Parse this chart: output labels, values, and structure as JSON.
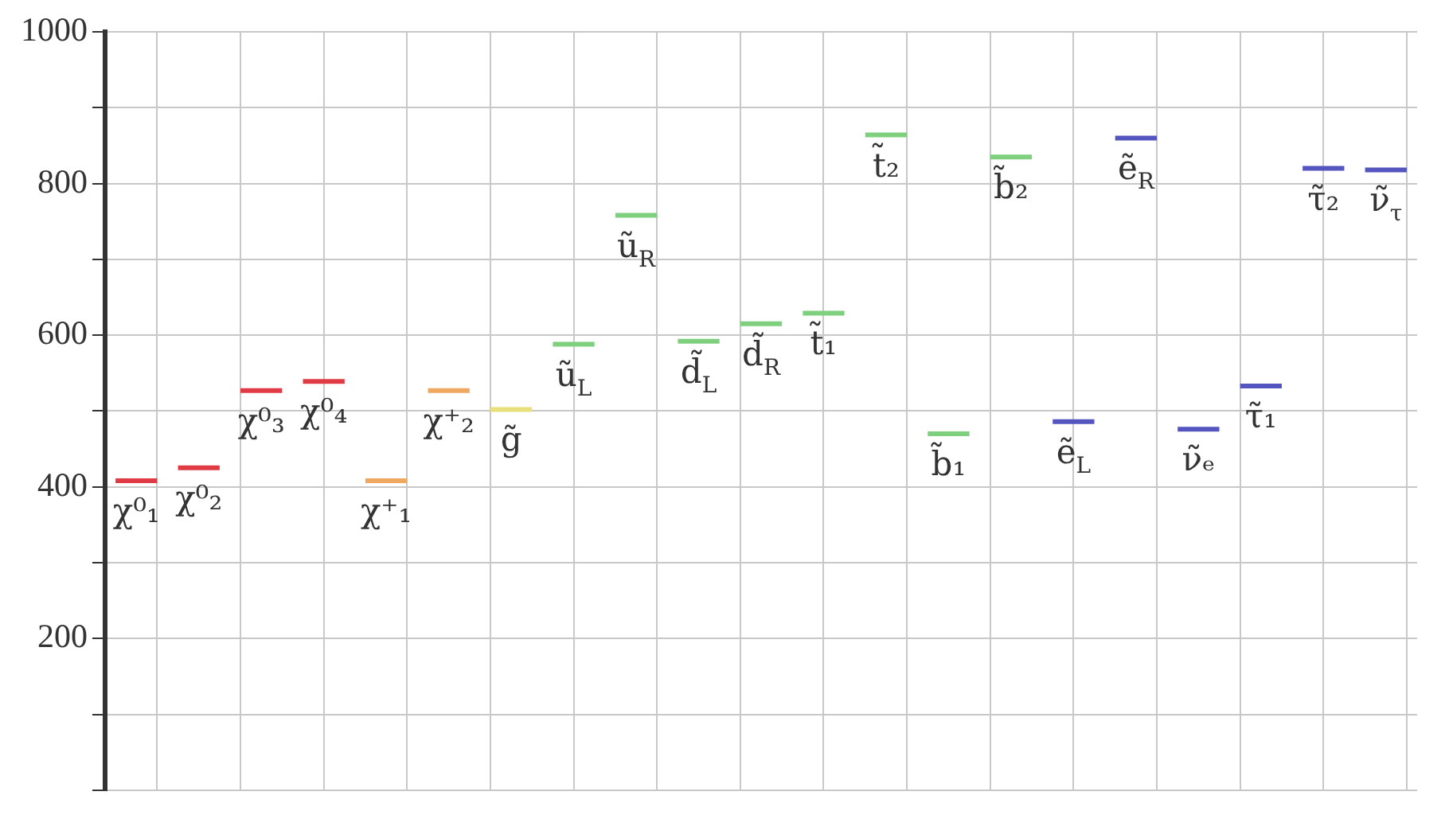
{
  "chart_data": {
    "type": "line",
    "categories": [
      null,
      null,
      null,
      null,
      null,
      null,
      null,
      null,
      null,
      null,
      null,
      null,
      null,
      null,
      null,
      null,
      null,
      null,
      null,
      null,
      null,
      null,
      null,
      null,
      null,
      null,
      null,
      null,
      null,
      null,
      null,
      null,
      null,
      null,
      null,
      null,
      null,
      null,
      null,
      null,
      null,
      null,
      null,
      null,
      null,
      null,
      null,
      null,
      null,
      null,
      null,
      null,
      null,
      null,
      null,
      null,
      null,
      null,
      null,
      null,
      null,
      null,
      null
    ],
    "series": [
      {
        "name": "χ⁰₁",
        "color": "#e03a44",
        "values": [
          408,
          408,
          408,
          null,
          null,
          null,
          null,
          null,
          null,
          null,
          null,
          null,
          null,
          null,
          null,
          null,
          null,
          null,
          null,
          null,
          null,
          null,
          null,
          null,
          null,
          null,
          null,
          null,
          null,
          null,
          null,
          null,
          null,
          null,
          null,
          null,
          null,
          null,
          null,
          null,
          null,
          null,
          null,
          null,
          null,
          null,
          null,
          null,
          null,
          null,
          null,
          null,
          null,
          null,
          null,
          null,
          null,
          null,
          null,
          null,
          null,
          null,
          null
        ]
      },
      {
        "name": "χ⁰₂",
        "color": "#e03a44",
        "values": [
          null,
          null,
          null,
          425,
          425,
          425,
          null,
          null,
          null,
          null,
          null,
          null,
          null,
          null,
          null,
          null,
          null,
          null,
          null,
          null,
          null,
          null,
          null,
          null,
          null,
          null,
          null,
          null,
          null,
          null,
          null,
          null,
          null,
          null,
          null,
          null,
          null,
          null,
          null,
          null,
          null,
          null,
          null,
          null,
          null,
          null,
          null,
          null,
          null,
          null,
          null,
          null,
          null,
          null,
          null,
          null,
          null,
          null,
          null,
          null,
          null,
          null,
          null
        ]
      },
      {
        "name": "χ⁰₃",
        "color": "#e03a44",
        "values": [
          null,
          null,
          null,
          null,
          null,
          null,
          527,
          527,
          527,
          null,
          null,
          null,
          null,
          null,
          null,
          null,
          null,
          null,
          null,
          null,
          null,
          null,
          null,
          null,
          null,
          null,
          null,
          null,
          null,
          null,
          null,
          null,
          null,
          null,
          null,
          null,
          null,
          null,
          null,
          null,
          null,
          null,
          null,
          null,
          null,
          null,
          null,
          null,
          null,
          null,
          null,
          null,
          null,
          null,
          null,
          null,
          null,
          null,
          null,
          null,
          null,
          null,
          null
        ]
      },
      {
        "name": "χ⁰₄",
        "color": "#e03a44",
        "values": [
          null,
          null,
          null,
          null,
          null,
          null,
          null,
          null,
          null,
          539,
          539,
          539,
          null,
          null,
          null,
          null,
          null,
          null,
          null,
          null,
          null,
          null,
          null,
          null,
          null,
          null,
          null,
          null,
          null,
          null,
          null,
          null,
          null,
          null,
          null,
          null,
          null,
          null,
          null,
          null,
          null,
          null,
          null,
          null,
          null,
          null,
          null,
          null,
          null,
          null,
          null,
          null,
          null,
          null,
          null,
          null,
          null,
          null,
          null,
          null,
          null,
          null,
          null
        ]
      },
      {
        "name": "χ⁺₁",
        "color": "#f0a860",
        "values": [
          null,
          null,
          null,
          null,
          null,
          null,
          null,
          null,
          null,
          null,
          null,
          null,
          408,
          408,
          408,
          null,
          null,
          null,
          null,
          null,
          null,
          null,
          null,
          null,
          null,
          null,
          null,
          null,
          null,
          null,
          null,
          null,
          null,
          null,
          null,
          null,
          null,
          null,
          null,
          null,
          null,
          null,
          null,
          null,
          null,
          null,
          null,
          null,
          null,
          null,
          null,
          null,
          null,
          null,
          null,
          null,
          null,
          null,
          null,
          null,
          null,
          null,
          null
        ]
      },
      {
        "name": "χ⁺₂",
        "color": "#f0a860",
        "values": [
          null,
          null,
          null,
          null,
          null,
          null,
          null,
          null,
          null,
          null,
          null,
          null,
          null,
          null,
          null,
          527,
          527,
          527,
          null,
          null,
          null,
          null,
          null,
          null,
          null,
          null,
          null,
          null,
          null,
          null,
          null,
          null,
          null,
          null,
          null,
          null,
          null,
          null,
          null,
          null,
          null,
          null,
          null,
          null,
          null,
          null,
          null,
          null,
          null,
          null,
          null,
          null,
          null,
          null,
          null,
          null,
          null,
          null,
          null,
          null,
          null,
          null,
          null
        ]
      },
      {
        "name": "g̃",
        "color": "#e8e07a",
        "values": [
          null,
          null,
          null,
          null,
          null,
          null,
          null,
          null,
          null,
          null,
          null,
          null,
          null,
          null,
          null,
          null,
          null,
          null,
          502,
          502,
          502,
          null,
          null,
          null,
          null,
          null,
          null,
          null,
          null,
          null,
          null,
          null,
          null,
          null,
          null,
          null,
          null,
          null,
          null,
          null,
          null,
          null,
          null,
          null,
          null,
          null,
          null,
          null,
          null,
          null,
          null,
          null,
          null,
          null,
          null,
          null,
          null,
          null,
          null,
          null,
          null,
          null,
          null
        ]
      },
      {
        "name": "ũ$_{L}$",
        "color": "#7ed07e",
        "values": [
          null,
          null,
          null,
          null,
          null,
          null,
          null,
          null,
          null,
          null,
          null,
          null,
          null,
          null,
          null,
          null,
          null,
          null,
          null,
          null,
          null,
          588,
          588,
          588,
          null,
          null,
          null,
          null,
          null,
          null,
          null,
          null,
          null,
          null,
          null,
          null,
          null,
          null,
          null,
          null,
          null,
          null,
          null,
          null,
          null,
          null,
          null,
          null,
          null,
          null,
          null,
          null,
          null,
          null,
          null,
          null,
          null,
          null,
          null,
          null,
          null,
          null,
          null
        ]
      },
      {
        "name": "ũ$_{R}$",
        "color": "#7ed07e",
        "values": [
          null,
          null,
          null,
          null,
          null,
          null,
          null,
          null,
          null,
          null,
          null,
          null,
          null,
          null,
          null,
          null,
          null,
          null,
          null,
          null,
          null,
          null,
          null,
          null,
          758,
          758,
          758,
          null,
          null,
          null,
          null,
          null,
          null,
          null,
          null,
          null,
          null,
          null,
          null,
          null,
          null,
          null,
          null,
          null,
          null,
          null,
          null,
          null,
          null,
          null,
          null,
          null,
          null,
          null,
          null,
          null,
          null,
          null,
          null,
          null,
          null,
          null,
          null
        ]
      },
      {
        "name": "d̃$_{L}$",
        "color": "#7ed07e",
        "values": [
          null,
          null,
          null,
          null,
          null,
          null,
          null,
          null,
          null,
          null,
          null,
          null,
          null,
          null,
          null,
          null,
          null,
          null,
          null,
          null,
          null,
          null,
          null,
          null,
          null,
          null,
          null,
          592,
          592,
          592,
          null,
          null,
          null,
          null,
          null,
          null,
          null,
          null,
          null,
          null,
          null,
          null,
          null,
          null,
          null,
          null,
          null,
          null,
          null,
          null,
          null,
          null,
          null,
          null,
          null,
          null,
          null,
          null,
          null,
          null,
          null,
          null,
          null
        ]
      },
      {
        "name": "d̃$_{R}$",
        "color": "#7ed07e",
        "values": [
          null,
          null,
          null,
          null,
          null,
          null,
          null,
          null,
          null,
          null,
          null,
          null,
          null,
          null,
          null,
          null,
          null,
          null,
          null,
          null,
          null,
          null,
          null,
          null,
          null,
          null,
          null,
          null,
          null,
          null,
          615,
          615,
          615,
          null,
          null,
          null,
          null,
          null,
          null,
          null,
          null,
          null,
          null,
          null,
          null,
          null,
          null,
          null,
          null,
          null,
          null,
          null,
          null,
          null,
          null,
          null,
          null,
          null,
          null,
          null,
          null,
          null,
          null
        ]
      },
      {
        "name": "t̃₁",
        "color": "#7ed07e",
        "values": [
          null,
          null,
          null,
          null,
          null,
          null,
          null,
          null,
          null,
          null,
          null,
          null,
          null,
          null,
          null,
          null,
          null,
          null,
          null,
          null,
          null,
          null,
          null,
          null,
          null,
          null,
          null,
          null,
          null,
          null,
          null,
          null,
          null,
          629,
          629,
          629,
          null,
          null,
          null,
          null,
          null,
          null,
          null,
          null,
          null,
          null,
          null,
          null,
          null,
          null,
          null,
          null,
          null,
          null,
          null,
          null,
          null,
          null,
          null,
          null,
          null,
          null,
          null
        ]
      },
      {
        "name": "t̃₂",
        "color": "#7ed07e",
        "values": [
          null,
          null,
          null,
          null,
          null,
          null,
          null,
          null,
          null,
          null,
          null,
          null,
          null,
          null,
          null,
          null,
          null,
          null,
          null,
          null,
          null,
          null,
          null,
          null,
          null,
          null,
          null,
          null,
          null,
          null,
          null,
          null,
          null,
          null,
          null,
          null,
          864,
          864,
          864,
          null,
          null,
          null,
          null,
          null,
          null,
          null,
          null,
          null,
          null,
          null,
          null,
          null,
          null,
          null,
          null,
          null,
          null,
          null,
          null,
          null,
          null,
          null,
          null
        ]
      },
      {
        "name": "b̃₁",
        "color": "#7ed07e",
        "values": [
          null,
          null,
          null,
          null,
          null,
          null,
          null,
          null,
          null,
          null,
          null,
          null,
          null,
          null,
          null,
          null,
          null,
          null,
          null,
          null,
          null,
          null,
          null,
          null,
          null,
          null,
          null,
          null,
          null,
          null,
          null,
          null,
          null,
          null,
          null,
          null,
          null,
          null,
          null,
          470,
          470,
          470,
          null,
          null,
          null,
          null,
          null,
          null,
          null,
          null,
          null,
          null,
          null,
          null,
          null,
          null,
          null,
          null,
          null,
          null,
          null,
          null,
          null
        ]
      },
      {
        "name": "b̃₂",
        "color": "#7ed07e",
        "values": [
          null,
          null,
          null,
          null,
          null,
          null,
          null,
          null,
          null,
          null,
          null,
          null,
          null,
          null,
          null,
          null,
          null,
          null,
          null,
          null,
          null,
          null,
          null,
          null,
          null,
          null,
          null,
          null,
          null,
          null,
          null,
          null,
          null,
          null,
          null,
          null,
          null,
          null,
          null,
          null,
          null,
          null,
          835,
          835,
          835,
          null,
          null,
          null,
          null,
          null,
          null,
          null,
          null,
          null,
          null,
          null,
          null,
          null,
          null,
          null,
          null,
          null,
          null
        ]
      },
      {
        "name": "ẽ$_{L}$",
        "color": "#5555c0",
        "values": [
          null,
          null,
          null,
          null,
          null,
          null,
          null,
          null,
          null,
          null,
          null,
          null,
          null,
          null,
          null,
          null,
          null,
          null,
          null,
          null,
          null,
          null,
          null,
          null,
          null,
          null,
          null,
          null,
          null,
          null,
          null,
          null,
          null,
          null,
          null,
          null,
          null,
          null,
          null,
          null,
          null,
          null,
          null,
          null,
          null,
          486,
          486,
          486,
          null,
          null,
          null,
          null,
          null,
          null,
          null,
          null,
          null,
          null,
          null,
          null,
          null,
          null,
          null
        ]
      },
      {
        "name": "ẽ$_{R}$",
        "color": "#5555c0",
        "values": [
          null,
          null,
          null,
          null,
          null,
          null,
          null,
          null,
          null,
          null,
          null,
          null,
          null,
          null,
          null,
          null,
          null,
          null,
          null,
          null,
          null,
          null,
          null,
          null,
          null,
          null,
          null,
          null,
          null,
          null,
          null,
          null,
          null,
          null,
          null,
          null,
          null,
          null,
          null,
          null,
          null,
          null,
          null,
          null,
          null,
          null,
          null,
          null,
          860,
          860,
          860,
          null,
          null,
          null,
          null,
          null,
          null,
          null,
          null,
          null,
          null,
          null,
          null
        ]
      },
      {
        "name": "ν̃ₑ",
        "color": "#5555c0",
        "values": [
          null,
          null,
          null,
          null,
          null,
          null,
          null,
          null,
          null,
          null,
          null,
          null,
          null,
          null,
          null,
          null,
          null,
          null,
          null,
          null,
          null,
          null,
          null,
          null,
          null,
          null,
          null,
          null,
          null,
          null,
          null,
          null,
          null,
          null,
          null,
          null,
          null,
          null,
          null,
          null,
          null,
          null,
          null,
          null,
          null,
          null,
          null,
          null,
          null,
          null,
          null,
          476,
          476,
          476,
          null,
          null,
          null,
          null,
          null,
          null,
          null,
          null,
          null
        ]
      },
      {
        "name": "τ̃₁",
        "color": "#5555c0",
        "values": [
          null,
          null,
          null,
          null,
          null,
          null,
          null,
          null,
          null,
          null,
          null,
          null,
          null,
          null,
          null,
          null,
          null,
          null,
          null,
          null,
          null,
          null,
          null,
          null,
          null,
          null,
          null,
          null,
          null,
          null,
          null,
          null,
          null,
          null,
          null,
          null,
          null,
          null,
          null,
          null,
          null,
          null,
          null,
          null,
          null,
          null,
          null,
          null,
          null,
          null,
          null,
          null,
          null,
          null,
          533,
          533,
          533,
          null,
          null,
          null,
          null,
          null,
          null
        ]
      },
      {
        "name": "τ̃₂",
        "color": "#5555c0",
        "values": [
          null,
          null,
          null,
          null,
          null,
          null,
          null,
          null,
          null,
          null,
          null,
          null,
          null,
          null,
          null,
          null,
          null,
          null,
          null,
          null,
          null,
          null,
          null,
          null,
          null,
          null,
          null,
          null,
          null,
          null,
          null,
          null,
          null,
          null,
          null,
          null,
          null,
          null,
          null,
          null,
          null,
          null,
          null,
          null,
          null,
          null,
          null,
          null,
          null,
          null,
          null,
          null,
          null,
          null,
          null,
          null,
          null,
          820,
          820,
          820,
          null,
          null,
          null
        ]
      },
      {
        "name": "ν̃$_{τ}$",
        "color": "#5555c0",
        "values": [
          null,
          null,
          null,
          null,
          null,
          null,
          null,
          null,
          null,
          null,
          null,
          null,
          null,
          null,
          null,
          null,
          null,
          null,
          null,
          null,
          null,
          null,
          null,
          null,
          null,
          null,
          null,
          null,
          null,
          null,
          null,
          null,
          null,
          null,
          null,
          null,
          null,
          null,
          null,
          null,
          null,
          null,
          null,
          null,
          null,
          null,
          null,
          null,
          null,
          null,
          null,
          null,
          null,
          null,
          null,
          null,
          null,
          null,
          null,
          null,
          818,
          818,
          818
        ]
      }
    ],
    "ylim": [
      0,
      1000
    ],
    "yticks": [
      {
        "value": 0,
        "label": null
      },
      {
        "value": 100,
        "label": null
      },
      200,
      {
        "value": 300,
        "label": null
      },
      400,
      {
        "value": 500,
        "label": null
      },
      600,
      {
        "value": 700,
        "label": null
      },
      800,
      {
        "value": 900,
        "label": null
      },
      1000
    ],
    "grid": true,
    "legend": false,
    "tick_labels": "y",
    "marker": "none",
    "line_style": "solid"
  }
}
